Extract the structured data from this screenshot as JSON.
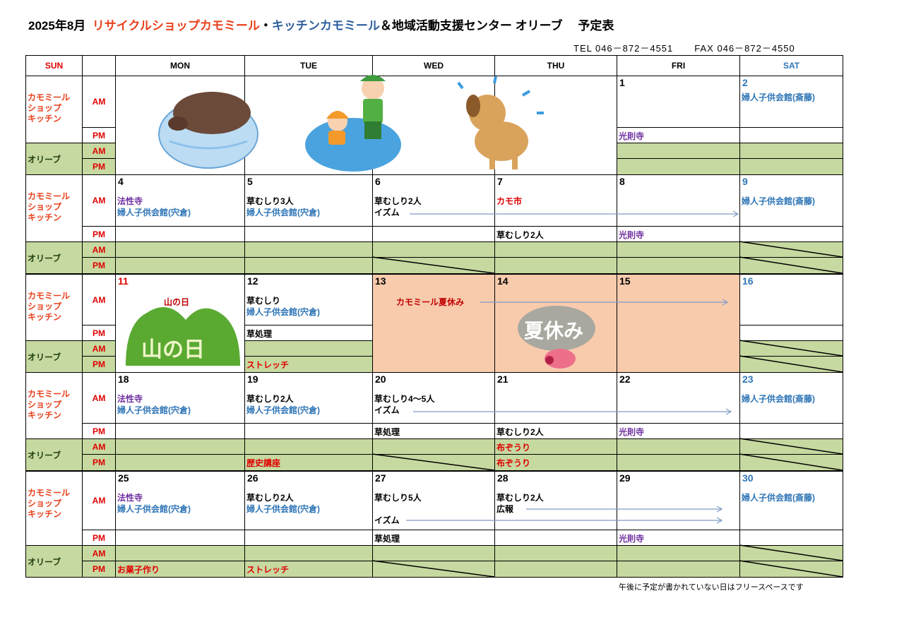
{
  "header": {
    "month": "2025年8月",
    "org_part1": "リサイクルショップカモミール",
    "separator": "・",
    "org_part2": "キッチンカモミール",
    "org_part3": "＆地域活動支援センター オリーブ　 予定表",
    "tel": "TEL 046－872－4551",
    "fax": "FAX 046－872－4550"
  },
  "colors": {
    "purple": "#7030a0",
    "blue": "#2e75b6",
    "red": "#e00000",
    "darkred": "#c00000",
    "black": "#000000",
    "olive": "#c6d9a0",
    "peach": "#f8cbad",
    "label": "#e8401c",
    "arrow": "#7f9cc4"
  },
  "columns": [
    "SUN",
    "",
    "MON",
    "TUE",
    "WED",
    "THU",
    "FRI",
    "SAT"
  ],
  "row_labels": {
    "kamomile": "カモミール\nショップ\nキッチン",
    "olive": "オリーブ",
    "am": "AM",
    "pm": "PM"
  },
  "weeks": [
    {
      "days": [
        {
          "date": "",
          "image": true
        },
        {
          "date": "",
          "image": true
        },
        {
          "date": "",
          "image": true
        },
        {
          "date": "",
          "image": true
        },
        {
          "date": "1",
          "am": [],
          "pm": [
            {
              "t": "光則寺",
              "c": "purple"
            }
          ]
        },
        {
          "date": "2",
          "sat": true,
          "am": [
            {
              "t": "婦人子供会館(斎藤)",
              "c": "blue"
            }
          ]
        }
      ],
      "image_names": [
        "wild-boar-bathing-illustration",
        "children-in-river-illustration",
        "dog-shaking-water-illustration"
      ]
    },
    {
      "days": [
        {
          "date": "4",
          "am": [
            {
              "t": "法性寺",
              "c": "purple"
            },
            {
              "t": "婦人子供会館(宍倉)",
              "c": "blue"
            }
          ]
        },
        {
          "date": "5",
          "am": [
            {
              "t": "草むしり3人",
              "c": "black"
            },
            {
              "t": "婦人子供会館(宍倉)",
              "c": "blue"
            }
          ]
        },
        {
          "date": "6",
          "am": [
            {
              "t": "草むしり2人",
              "c": "black"
            },
            {
              "t": "イズム",
              "c": "black"
            }
          ],
          "olive_pm_closed": true
        },
        {
          "date": "7",
          "am": [
            {
              "t": "カモ市",
              "c": "red"
            }
          ],
          "pm": [
            {
              "t": "草むしり2人",
              "c": "black"
            }
          ]
        },
        {
          "date": "8",
          "pm": [
            {
              "t": "光則寺",
              "c": "purple"
            }
          ]
        },
        {
          "date": "9",
          "sat": true,
          "am": [
            {
              "t": "婦人子供会館(斎藤)",
              "c": "blue"
            }
          ],
          "olive_am_closed": true,
          "olive_pm_closed": true
        }
      ]
    },
    {
      "days": [
        {
          "date": "11",
          "holiday": true,
          "label": "山の日",
          "image_text": "山の日"
        },
        {
          "date": "12",
          "am": [
            {
              "t": "草むしり",
              "c": "black"
            },
            {
              "t": "婦人子供会館(宍倉)",
              "c": "blue"
            }
          ],
          "pm": [
            {
              "t": "草処理",
              "c": "black"
            }
          ],
          "olive_pm": [
            {
              "t": "ストレッチ",
              "c": "red"
            }
          ]
        },
        {
          "date": "13",
          "closed": true,
          "label": "カモミール夏休み"
        },
        {
          "date": "14",
          "closed": true,
          "image_text": "夏休み"
        },
        {
          "date": "15",
          "closed": true
        },
        {
          "date": "16",
          "sat": true,
          "olive_am_closed": true,
          "olive_pm_closed": true
        }
      ]
    },
    {
      "days": [
        {
          "date": "18",
          "am": [
            {
              "t": "法性寺",
              "c": "purple"
            },
            {
              "t": "婦人子供会館(宍倉)",
              "c": "blue"
            }
          ]
        },
        {
          "date": "19",
          "am": [
            {
              "t": "草むしり2人",
              "c": "black"
            },
            {
              "t": "婦人子供会館(宍倉)",
              "c": "blue"
            }
          ],
          "olive_pm": [
            {
              "t": "歴史講座",
              "c": "red"
            }
          ]
        },
        {
          "date": "20",
          "am": [
            {
              "t": "草むしり4～5人",
              "c": "black"
            },
            {
              "t": "イズム",
              "c": "black"
            }
          ],
          "pm": [
            {
              "t": "草処理",
              "c": "black"
            }
          ],
          "olive_pm_closed": true
        },
        {
          "date": "21",
          "pm": [
            {
              "t": "草むしり2人",
              "c": "black"
            }
          ],
          "olive_am": [
            {
              "t": "布ぞうり",
              "c": "red"
            }
          ],
          "olive_pm": [
            {
              "t": "布ぞうり",
              "c": "red"
            }
          ]
        },
        {
          "date": "22",
          "pm": [
            {
              "t": "光則寺",
              "c": "purple"
            }
          ]
        },
        {
          "date": "23",
          "sat": true,
          "am": [
            {
              "t": "婦人子供会館(斎藤)",
              "c": "blue"
            }
          ],
          "olive_am_closed": true,
          "olive_pm_closed": true
        }
      ]
    },
    {
      "days": [
        {
          "date": "25",
          "am": [
            {
              "t": "法性寺",
              "c": "purple"
            },
            {
              "t": "婦人子供会館(宍倉)",
              "c": "blue"
            }
          ],
          "olive_pm": [
            {
              "t": "お菓子作り",
              "c": "red"
            }
          ]
        },
        {
          "date": "26",
          "am": [
            {
              "t": "草むしり2人",
              "c": "black"
            },
            {
              "t": "婦人子供会館(宍倉)",
              "c": "blue"
            }
          ],
          "olive_pm": [
            {
              "t": "ストレッチ",
              "c": "red"
            }
          ]
        },
        {
          "date": "27",
          "am": [
            {
              "t": "草むしり5人",
              "c": "black"
            },
            {
              "t": "",
              "c": "black"
            },
            {
              "t": "イズム",
              "c": "black"
            }
          ],
          "pm": [
            {
              "t": "草処理",
              "c": "black"
            }
          ],
          "olive_pm_closed": true
        },
        {
          "date": "28",
          "am": [
            {
              "t": "草むしり2人",
              "c": "black"
            },
            {
              "t": "広報",
              "c": "black"
            }
          ]
        },
        {
          "date": "29",
          "pm": [
            {
              "t": "光則寺",
              "c": "purple"
            }
          ]
        },
        {
          "date": "30",
          "sat": true,
          "am": [
            {
              "t": "婦人子供会館(斎藤)",
              "c": "blue"
            }
          ],
          "olive_am_closed": true,
          "olive_pm_closed": true
        }
      ]
    }
  ],
  "footnote": "午後に予定が書かれていない日はフリースペースです"
}
